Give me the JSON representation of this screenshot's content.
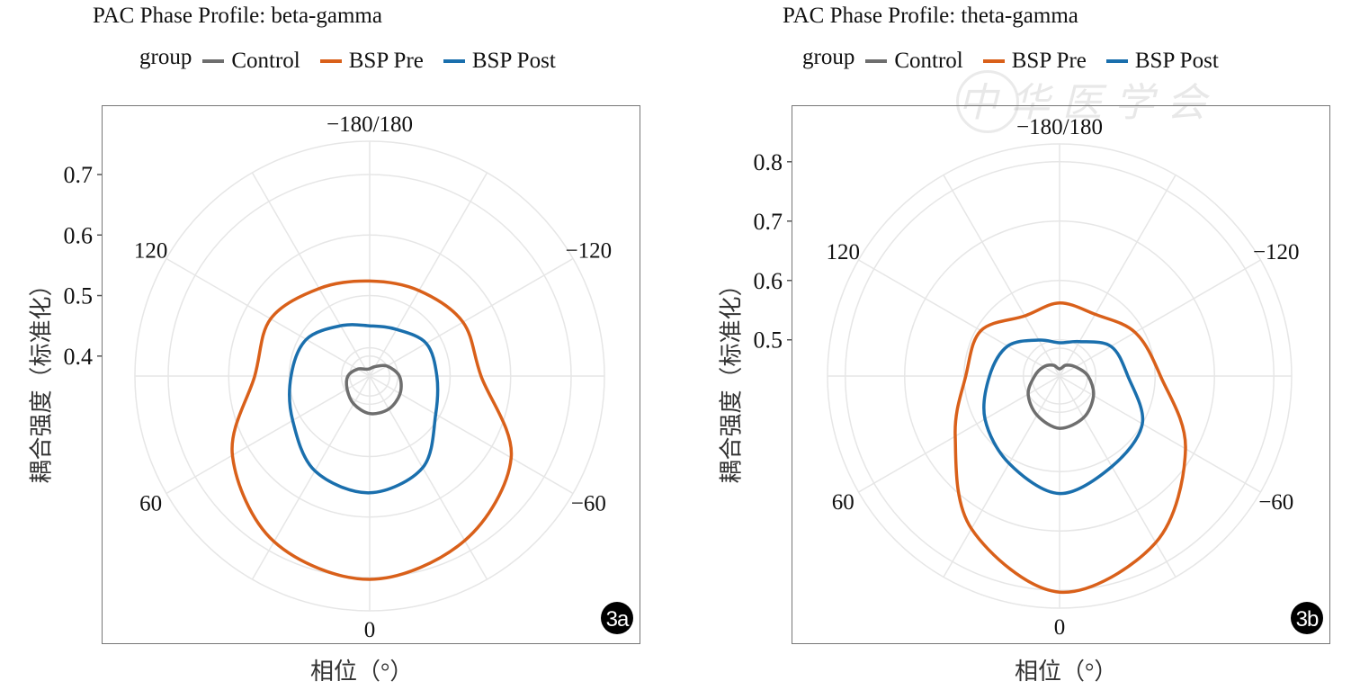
{
  "watermark": "中华医学会",
  "colors": {
    "Control": "#6e6e6e",
    "BSP Pre": "#d9601a",
    "BSP Post": "#1a6fad",
    "grid": "#e6e6e6"
  },
  "chart_data": [
    {
      "type": "line",
      "subtype": "polar",
      "panel": "3a",
      "title": "PAC Phase Profile: beta-gamma",
      "legend_title": "group",
      "legend_position": "top",
      "xlabel": "相位（°）",
      "ylabel": "耦合强度（标准化）",
      "yticks": [
        0.4,
        0.5,
        0.6,
        0.7
      ],
      "ytick_labels": [
        "0.4",
        "0.5",
        "0.6",
        "0.7"
      ],
      "rlim": [
        0.367,
        0.755
      ],
      "angle_ticks": [
        0,
        60,
        120,
        180,
        -120,
        -60
      ],
      "angle_tick_labels": [
        "0",
        "60",
        "120",
        "−180/180",
        "−120",
        "−60"
      ],
      "grid": true,
      "theta": [
        0,
        30,
        60,
        90,
        120,
        150,
        180,
        -150,
        -120,
        -90,
        -60,
        -30
      ],
      "series": [
        {
          "name": "Control",
          "values": [
            0.429,
            0.42,
            0.41,
            0.403,
            0.39,
            0.38,
            0.379,
            0.385,
            0.4,
            0.416,
            0.425,
            0.43
          ]
        },
        {
          "name": "BSP Pre",
          "values": [
            0.703,
            0.683,
            0.629,
            0.557,
            0.556,
            0.534,
            0.524,
            0.53,
            0.545,
            0.551,
            0.637,
            0.681
          ]
        },
        {
          "name": "BSP Post",
          "values": [
            0.56,
            0.548,
            0.514,
            0.497,
            0.488,
            0.463,
            0.45,
            0.456,
            0.475,
            0.478,
            0.493,
            0.542
          ]
        }
      ]
    },
    {
      "type": "line",
      "subtype": "polar",
      "panel": "3b",
      "title": "PAC Phase Profile: theta-gamma",
      "legend_title": "group",
      "legend_position": "top",
      "xlabel": "相位（°）",
      "ylabel": "耦合强度（标准化）",
      "yticks": [
        0.5,
        0.6,
        0.7,
        0.8
      ],
      "ytick_labels": [
        "0.5",
        "0.6",
        "0.7",
        "0.8"
      ],
      "rlim": [
        0.439,
        0.83
      ],
      "angle_ticks": [
        0,
        60,
        120,
        180,
        -120,
        -60
      ],
      "angle_tick_labels": [
        "0",
        "60",
        "120",
        "−180/180",
        "−120",
        "−60"
      ],
      "grid": true,
      "theta": [
        0,
        30,
        60,
        90,
        120,
        150,
        180,
        -150,
        -120,
        -90,
        -60,
        -30
      ],
      "series": [
        {
          "name": "Control",
          "values": [
            0.527,
            0.515,
            0.5,
            0.481,
            0.47,
            0.46,
            0.451,
            0.46,
            0.47,
            0.487,
            0.505,
            0.52
          ]
        },
        {
          "name": "BSP Pre",
          "values": [
            0.803,
            0.736,
            0.642,
            0.597,
            0.592,
            0.556,
            0.562,
            0.559,
            0.586,
            0.609,
            0.684,
            0.763
          ]
        },
        {
          "name": "BSP Post",
          "values": [
            0.637,
            0.609,
            0.584,
            0.557,
            0.54,
            0.509,
            0.495,
            0.506,
            0.539,
            0.554,
            0.6,
            0.615
          ]
        }
      ]
    }
  ]
}
